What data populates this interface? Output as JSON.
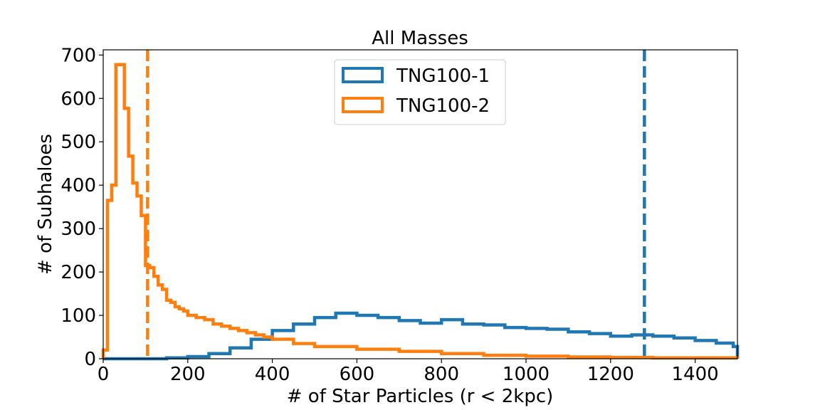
{
  "chart_data": {
    "type": "histogram",
    "title": "All Masses",
    "xlabel": "# of Star Particles (r < 2kpc)",
    "ylabel": "# of Subhaloes",
    "xlim": [
      0,
      1500
    ],
    "ylim": [
      0,
      712
    ],
    "xticks": [
      0,
      200,
      400,
      600,
      800,
      1000,
      1200,
      1400
    ],
    "yticks": [
      0,
      100,
      200,
      300,
      400,
      500,
      600,
      700
    ],
    "bin_width": 10,
    "legend_position": "upper-center",
    "series": [
      {
        "name": "TNG100-1",
        "color": "#1f77b4",
        "median_line_x": 1280,
        "bin_starts": [
          0,
          50,
          100,
          150,
          200,
          250,
          300,
          350,
          400,
          450,
          500,
          550,
          600,
          650,
          700,
          750,
          800,
          850,
          900,
          950,
          1000,
          1050,
          1100,
          1150,
          1200,
          1250,
          1300,
          1350,
          1400,
          1450,
          1490
        ],
        "counts": [
          0,
          0,
          0,
          2,
          5,
          12,
          25,
          45,
          65,
          80,
          95,
          105,
          100,
          95,
          88,
          82,
          90,
          80,
          78,
          72,
          70,
          68,
          62,
          58,
          52,
          55,
          52,
          48,
          42,
          36,
          28
        ]
      },
      {
        "name": "TNG100-2",
        "color": "#ff7f0e",
        "median_line_x": 105,
        "bin_starts": [
          0,
          10,
          20,
          30,
          40,
          50,
          60,
          70,
          80,
          90,
          100,
          110,
          120,
          130,
          140,
          150,
          160,
          170,
          180,
          190,
          200,
          220,
          240,
          260,
          280,
          300,
          320,
          340,
          360,
          380,
          400,
          450,
          500,
          600,
          700,
          800,
          900,
          1000,
          1100,
          1200,
          1300,
          1400
        ],
        "counts": [
          20,
          365,
          400,
          678,
          678,
          577,
          467,
          405,
          375,
          330,
          215,
          210,
          190,
          170,
          160,
          135,
          130,
          120,
          115,
          110,
          100,
          95,
          90,
          80,
          75,
          70,
          65,
          60,
          55,
          50,
          45,
          35,
          28,
          22,
          17,
          12,
          8,
          6,
          4,
          3,
          2,
          2
        ]
      }
    ]
  }
}
